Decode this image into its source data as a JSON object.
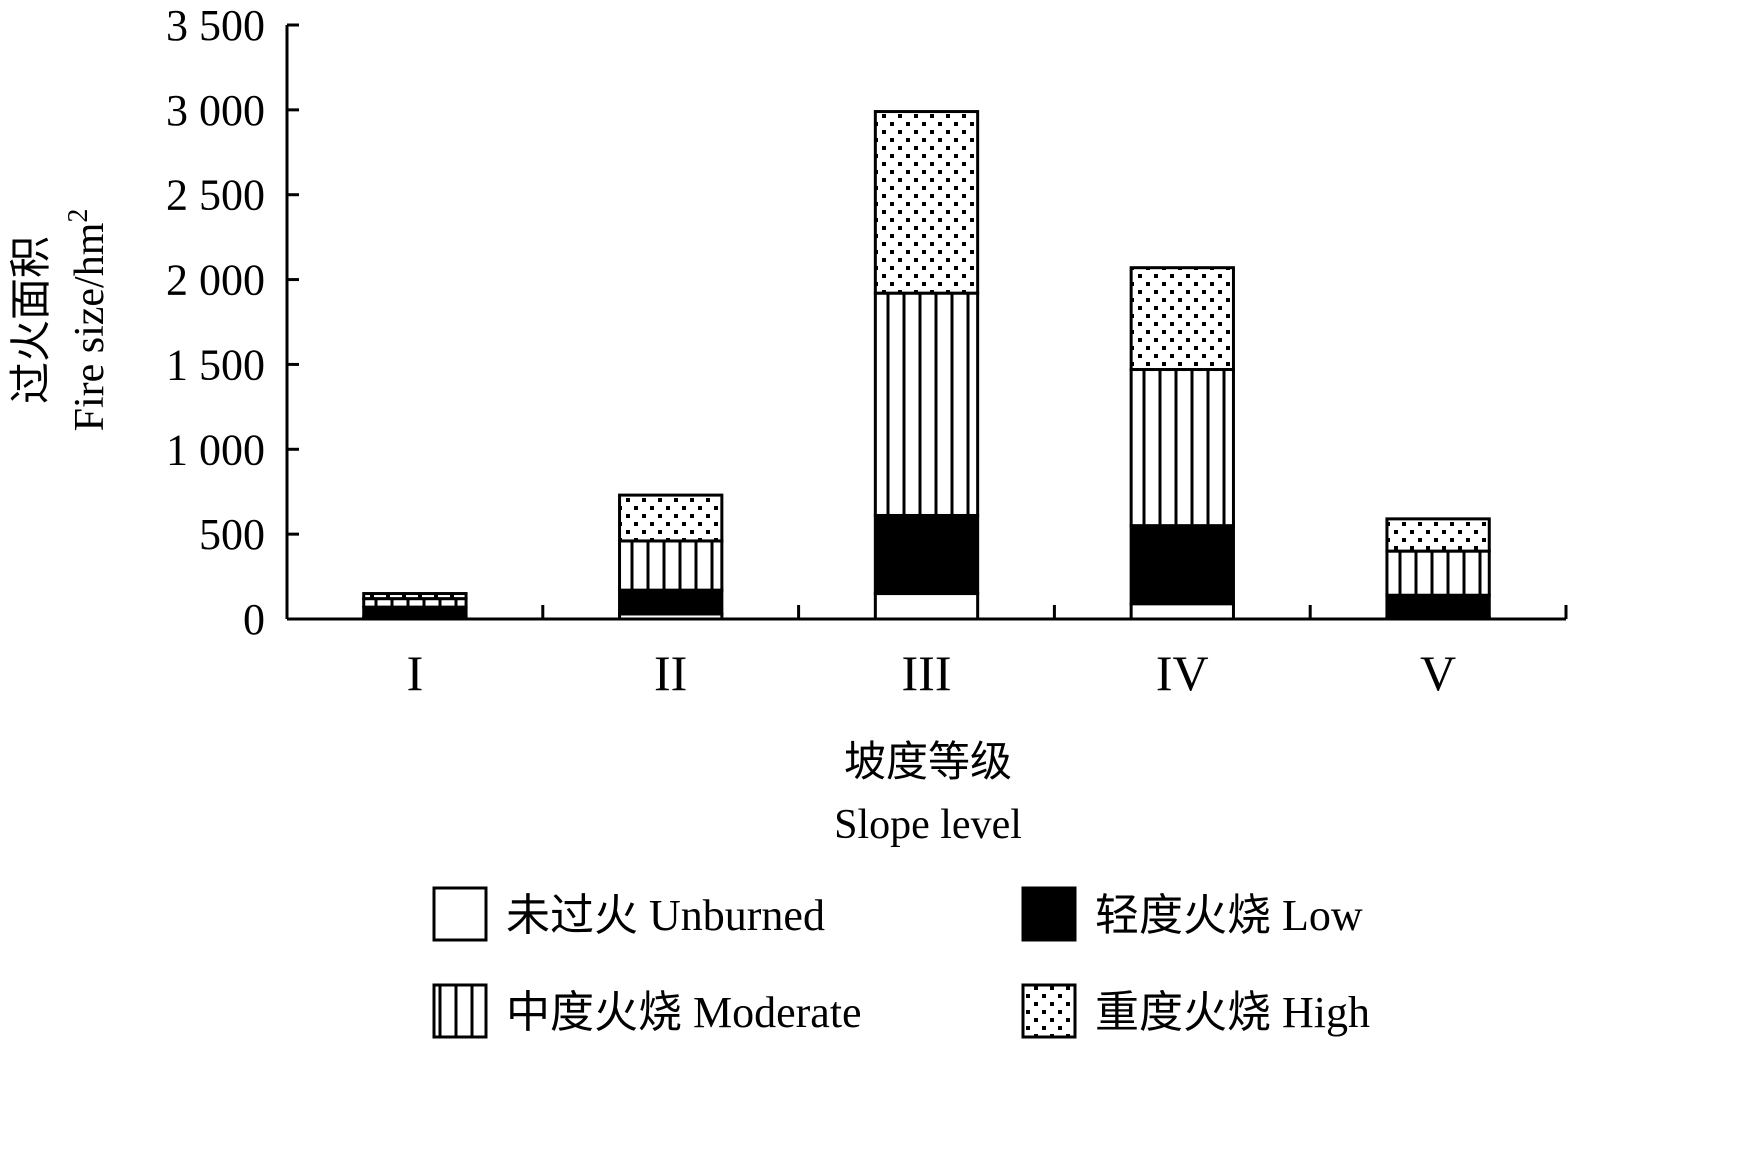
{
  "chart_data": {
    "type": "bar",
    "stacked": true,
    "categories": [
      "I",
      "II",
      "III",
      "IV",
      "V"
    ],
    "series": [
      {
        "name": "未过火 Unburned",
        "pattern": "blank",
        "color": "#ffffff",
        "values": [
          15,
          30,
          150,
          90,
          10
        ]
      },
      {
        "name": "轻度火烧 Low",
        "pattern": "solid",
        "color": "#000000",
        "values": [
          55,
          140,
          460,
          460,
          130
        ]
      },
      {
        "name": "中度火烧 Moderate",
        "pattern": "vertical-lines",
        "color": "#ffffff",
        "values": [
          50,
          290,
          1310,
          920,
          260
        ]
      },
      {
        "name": "重度火烧 High",
        "pattern": "dots",
        "color": "#ffffff",
        "values": [
          30,
          270,
          1070,
          600,
          190
        ]
      }
    ],
    "yticks": [
      "0",
      "500",
      "1 000",
      "1 500",
      "2 000",
      "2 500",
      "3 000",
      "3 500"
    ],
    "ytick_values": [
      0,
      500,
      1000,
      1500,
      2000,
      2500,
      3000,
      3500
    ],
    "ylim": [
      0,
      3500
    ],
    "ylabel_cn": "过火面积",
    "ylabel_en": "Fire size/hm",
    "ylabel_sup": "2",
    "xlabel_cn": "坡度等级",
    "xlabel_en": "Slope level",
    "legend_position": "bottom",
    "grid": false
  }
}
